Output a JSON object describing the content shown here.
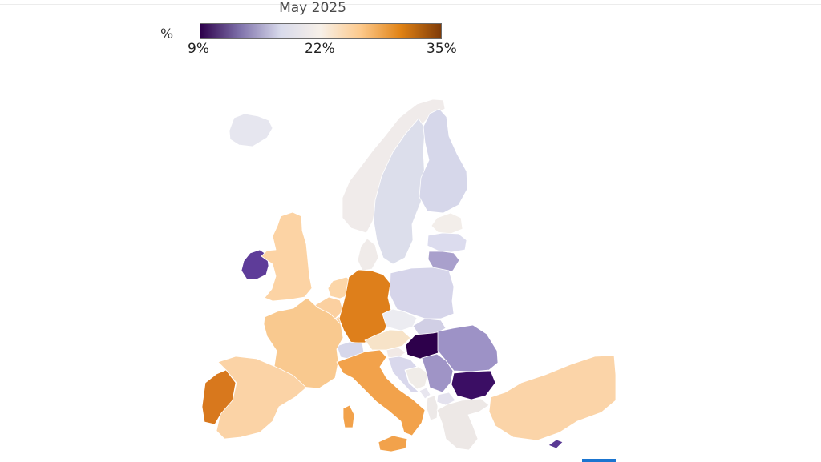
{
  "legend": {
    "title": "May 2025",
    "unit": "%",
    "min_label": "9%",
    "mid_label": "22%",
    "max_label": "35%",
    "min_value": 9,
    "mid_value": 22,
    "max_value": 35,
    "color_stops": [
      "#2d004b",
      "#8073ac",
      "#d8daeb",
      "#f7f0e8",
      "#fdc98b",
      "#e08214",
      "#7f3b08"
    ]
  },
  "map": {
    "regions": [
      {
        "name": "Iceland",
        "color": "#e6e6ef"
      },
      {
        "name": "Norway",
        "color": "#f0ebea"
      },
      {
        "name": "Sweden",
        "color": "#dcdeeb"
      },
      {
        "name": "Finland",
        "color": "#d6d7ea"
      },
      {
        "name": "Estonia",
        "color": "#f3eeea"
      },
      {
        "name": "Latvia",
        "color": "#dcdcee"
      },
      {
        "name": "Lithuania",
        "color": "#a9a0cc"
      },
      {
        "name": "Denmark",
        "color": "#f0ebe9"
      },
      {
        "name": "Ireland",
        "color": "#5e3c99"
      },
      {
        "name": "United Kingdom",
        "color": "#fcd3a4"
      },
      {
        "name": "Netherlands",
        "color": "#fcd6a8"
      },
      {
        "name": "Belgium",
        "color": "#fbd0a0"
      },
      {
        "name": "Luxembourg",
        "color": "#fad4a9"
      },
      {
        "name": "Germany",
        "color": "#de7f1b"
      },
      {
        "name": "Poland",
        "color": "#d6d5ea"
      },
      {
        "name": "Czechia",
        "color": "#ececf1"
      },
      {
        "name": "Slovakia",
        "color": "#d1cfe5"
      },
      {
        "name": "Austria",
        "color": "#f7e3c8"
      },
      {
        "name": "Switzerland",
        "color": "#d6d7ea"
      },
      {
        "name": "France",
        "color": "#f9c98f"
      },
      {
        "name": "Hungary",
        "color": "#2d004b"
      },
      {
        "name": "Slovenia",
        "color": "#f1e9e6"
      },
      {
        "name": "Croatia",
        "color": "#d9d8ec"
      },
      {
        "name": "Bosnia and Herzegovina",
        "color": "#f0ece8"
      },
      {
        "name": "Serbia",
        "color": "#9f94c6"
      },
      {
        "name": "Montenegro",
        "color": "#e8e6ef"
      },
      {
        "name": "North Macedonia",
        "color": "#e4e2ee"
      },
      {
        "name": "Albania",
        "color": "#ede9e8"
      },
      {
        "name": "Romania",
        "color": "#9d92c6"
      },
      {
        "name": "Bulgaria",
        "color": "#3b0e64"
      },
      {
        "name": "Greece",
        "color": "#ede8e6"
      },
      {
        "name": "Turkey",
        "color": "#fbd4a8"
      },
      {
        "name": "Cyprus",
        "color": "#5a3a94"
      },
      {
        "name": "Italy",
        "color": "#f2a24b"
      },
      {
        "name": "Spain",
        "color": "#fbd3a6"
      },
      {
        "name": "Portugal",
        "color": "#d8781d"
      }
    ]
  }
}
